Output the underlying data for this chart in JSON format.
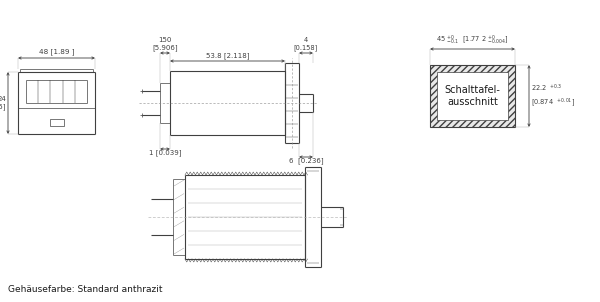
{
  "bg_color": "#ffffff",
  "line_color": "#404040",
  "dim_color": "#404040",
  "text_color": "#1a1a1a",
  "title_bottom": "Gehäusefarbe: Standard anthrazit",
  "panel_label": "Schalttafel-\nausschnitt",
  "fig_w": 6.0,
  "fig_h": 3.02,
  "dpi": 100
}
